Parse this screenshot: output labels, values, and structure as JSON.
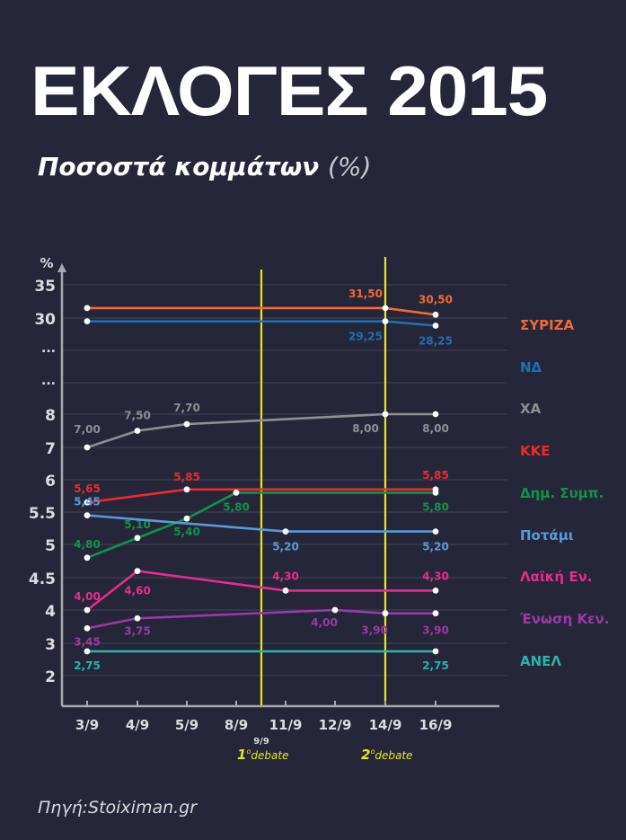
{
  "header": {
    "title": "ΕΚΛΟΓΕΣ 2015",
    "subtitle_main": "Ποσοστά κομμάτων",
    "subtitle_unit": "(%)"
  },
  "source": "Πηγή:Stoiximan.gr",
  "chart_data": {
    "type": "line",
    "title": "ΕΚΛΟΓΕΣ 2015",
    "subtitle": "Ποσοστά κομμάτων (%)",
    "ylabel": "%",
    "xlabel": "",
    "grid": true,
    "legend_position": "right",
    "y_ticks": [
      "35",
      "30",
      "...",
      "...",
      "8",
      "7",
      "6",
      "5.5",
      "5",
      "4.5",
      "4",
      "3",
      "2"
    ],
    "x_ticks": [
      "3/9",
      "4/9",
      "5/9",
      "8/9",
      "11/9",
      "12/9",
      "14/9",
      "16/9"
    ],
    "extra_x_label": "9/9",
    "annotations": [
      {
        "at": "9/9",
        "num": "1",
        "sup": "ο",
        "text": "debate"
      },
      {
        "at": "14/9",
        "num": "2",
        "sup": "ο",
        "text": "debate"
      }
    ],
    "series": [
      {
        "name": "ΣΥΡΙΖΑ",
        "color": "#f06a35",
        "points": [
          {
            "x": "3/9",
            "y": 31.5
          },
          {
            "x": "14/9",
            "y": 31.5,
            "label": "31,50"
          },
          {
            "x": "16/9",
            "y": 30.5,
            "label": "30,50"
          }
        ]
      },
      {
        "name": "ΝΔ",
        "color": "#1f6fb3",
        "points": [
          {
            "x": "3/9",
            "y": 29.25
          },
          {
            "x": "14/9",
            "y": 29.25,
            "label": "29,25"
          },
          {
            "x": "16/9",
            "y": 28.25,
            "label": "28,25"
          }
        ]
      },
      {
        "name": "ΧΑ",
        "color": "#8e8e96",
        "points": [
          {
            "x": "3/9",
            "y": 7.0,
            "label": "7,00"
          },
          {
            "x": "4/9",
            "y": 7.5,
            "label": "7,50"
          },
          {
            "x": "5/9",
            "y": 7.7,
            "label": "7,70"
          },
          {
            "x": "14/9",
            "y": 8.0,
            "label": "8,00"
          },
          {
            "x": "16/9",
            "y": 8.0,
            "label": "8,00"
          }
        ]
      },
      {
        "name": "ΚΚΕ",
        "color": "#ee2a2a",
        "points": [
          {
            "x": "3/9",
            "y": 5.65,
            "label": "5,65"
          },
          {
            "x": "5/9",
            "y": 5.85,
            "label": "5,85"
          },
          {
            "x": "16/9",
            "y": 5.85,
            "label": "5,85"
          }
        ]
      },
      {
        "name": "Δημ. Συμπ.",
        "color": "#13924a",
        "points": [
          {
            "x": "3/9",
            "y": 4.8,
            "label": "4,80"
          },
          {
            "x": "4/9",
            "y": 5.1,
            "label": "5,10"
          },
          {
            "x": "5/9",
            "y": 5.4,
            "label": "5,40"
          },
          {
            "x": "8/9",
            "y": 5.8,
            "label": "5,80"
          },
          {
            "x": "16/9",
            "y": 5.8,
            "label": "5,80"
          }
        ]
      },
      {
        "name": "Ποτάμι",
        "color": "#5a9ad6",
        "points": [
          {
            "x": "3/9",
            "y": 5.45,
            "label": "5,45"
          },
          {
            "x": "11/9",
            "y": 5.2,
            "label": "5,20"
          },
          {
            "x": "16/9",
            "y": 5.2,
            "label": "5,20"
          }
        ]
      },
      {
        "name": "Λαϊκή Εν.",
        "color": "#e52d8c",
        "points": [
          {
            "x": "3/9",
            "y": 4.0,
            "label": "4,00"
          },
          {
            "x": "4/9",
            "y": 4.6,
            "label": "4,60"
          },
          {
            "x": "11/9",
            "y": 4.3,
            "label": "4,30"
          },
          {
            "x": "16/9",
            "y": 4.3,
            "label": "4,30"
          }
        ]
      },
      {
        "name": "Ένωση Κεν.",
        "color": "#9a3aa6",
        "points": [
          {
            "x": "3/9",
            "y": 3.45,
            "label": "3,45"
          },
          {
            "x": "4/9",
            "y": 3.75,
            "label": "3,75"
          },
          {
            "x": "12/9",
            "y": 4.0,
            "label": "4,00"
          },
          {
            "x": "14/9",
            "y": 3.9,
            "label": "3,90"
          },
          {
            "x": "16/9",
            "y": 3.9,
            "label": "3,90"
          }
        ]
      },
      {
        "name": "ΑΝΕΛ",
        "color": "#2bb3a8",
        "points": [
          {
            "x": "3/9",
            "y": 2.75,
            "label": "2,75"
          },
          {
            "x": "16/9",
            "y": 2.75,
            "label": "2,75"
          }
        ]
      }
    ]
  },
  "colors": {
    "background": "#26263a",
    "axis": "#a8a8b0",
    "grid": "#3d3d55",
    "debate": "#e6e61a"
  }
}
